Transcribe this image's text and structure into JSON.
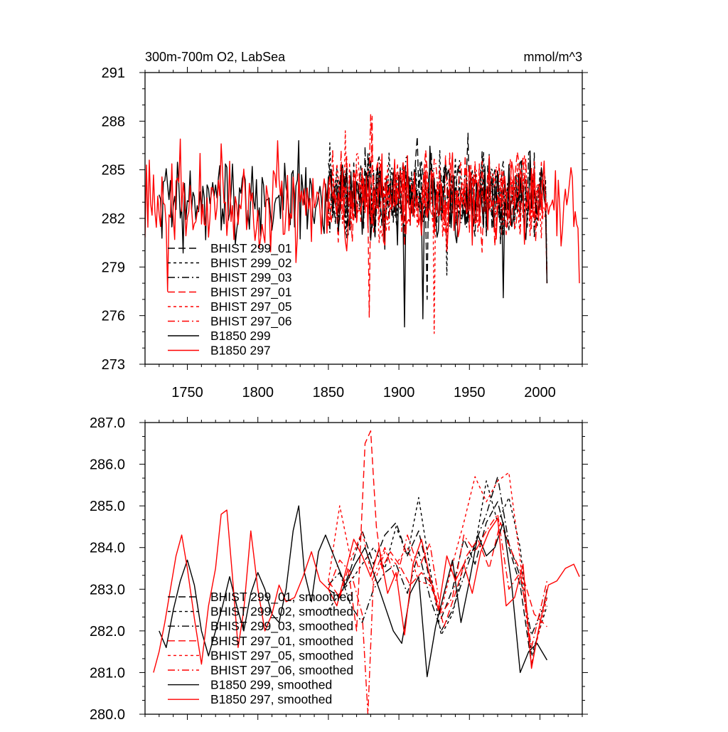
{
  "chart_data": [
    {
      "type": "line",
      "title": "300m-700m O2, LabSea",
      "units": "mmol/m^3",
      "xlim": [
        1720,
        2030
      ],
      "ylim": [
        273,
        291
      ],
      "xticks": [
        1750,
        1800,
        1850,
        1900,
        1950,
        2000
      ],
      "xtick_labels": [
        "1750",
        "1800",
        "1850",
        "1900",
        "1950",
        "2000"
      ],
      "yticks": [
        273,
        276,
        279,
        282,
        285,
        288,
        291
      ],
      "ytick_labels": [
        "273",
        "276",
        "279",
        "282",
        "285",
        "288",
        "291"
      ],
      "legend_position": "lower-left",
      "series": [
        {
          "name": "BHIST 299_01",
          "color": "#000000",
          "dash": "long-dash",
          "x_start": 1850,
          "x_end": 2005,
          "mean": 283.6,
          "amplitude": 1.9,
          "low": 278.0,
          "spikes": [
            [
              1920,
              277.0
            ]
          ]
        },
        {
          "name": "BHIST 299_02",
          "color": "#000000",
          "dash": "short-dash",
          "x_start": 1850,
          "x_end": 2005,
          "mean": 283.5,
          "amplitude": 1.9,
          "low": 278.0,
          "spikes": [
            [
              1934,
              278.5
            ]
          ]
        },
        {
          "name": "BHIST 299_03",
          "color": "#000000",
          "dash": "dash-dot",
          "x_start": 1850,
          "x_end": 2005,
          "mean": 283.5,
          "amplitude": 1.8,
          "low": 278.0,
          "spikes": []
        },
        {
          "name": "BHIST 297_01",
          "color": "#ff0000",
          "dash": "long-dash",
          "x_start": 1850,
          "x_end": 2005,
          "mean": 283.3,
          "amplitude": 2.0,
          "low": 278.0,
          "spikes": [
            [
              1879,
              275.9
            ],
            [
              1881,
              288.3
            ]
          ]
        },
        {
          "name": "BHIST 297_05",
          "color": "#ff0000",
          "dash": "short-dash",
          "x_start": 1850,
          "x_end": 2005,
          "mean": 283.4,
          "amplitude": 2.0,
          "low": 278.0,
          "spikes": [
            [
              1925,
              274.9
            ],
            [
              1862,
              287.4
            ]
          ]
        },
        {
          "name": "BHIST 297_06",
          "color": "#ff0000",
          "dash": "dash-dot",
          "x_start": 1850,
          "x_end": 2005,
          "mean": 283.4,
          "amplitude": 1.9,
          "low": 278.0,
          "spikes": [
            [
              1880,
              288.4
            ]
          ]
        },
        {
          "name": "B1850 299",
          "color": "#000000",
          "dash": "solid",
          "x_start": 1730,
          "x_end": 2005,
          "mean": 283.0,
          "amplitude": 2.0,
          "low": 278.0,
          "spikes": [
            [
              1904,
              275.3
            ],
            [
              1917,
              275.8
            ],
            [
              1829,
              286.8
            ],
            [
              1974,
              277.1
            ]
          ]
        },
        {
          "name": "B1850 297",
          "color": "#ff0000",
          "dash": "solid",
          "x_start": 1720,
          "x_end": 2028,
          "mean": 283.0,
          "amplitude": 2.0,
          "low": 278.0,
          "spikes": [
            [
              1736,
              277.5
            ],
            [
              1745,
              286.9
            ],
            [
              1774,
              286.6
            ]
          ]
        }
      ]
    },
    {
      "type": "line",
      "title": "",
      "xlim": [
        1720,
        2030
      ],
      "ylim": [
        280.0,
        287.0
      ],
      "xticks": [
        1750,
        1800,
        1850,
        1900,
        1950,
        2000
      ],
      "yticks": [
        280.0,
        281.0,
        282.0,
        283.0,
        284.0,
        285.0,
        286.0,
        287.0
      ],
      "ytick_labels": [
        "280.0",
        "281.0",
        "282.0",
        "283.0",
        "284.0",
        "285.0",
        "286.0",
        "287.0"
      ],
      "legend_position": "lower-left",
      "series": [
        {
          "name": "BHIST 299_01, smoothed",
          "color": "#000000",
          "dash": "long-dash",
          "x": [
            1850,
            1858,
            1866,
            1874,
            1882,
            1890,
            1898,
            1906,
            1914,
            1922,
            1930,
            1938,
            1946,
            1954,
            1962,
            1970,
            1978,
            1986,
            1994,
            2005
          ],
          "y": [
            283.0,
            282.8,
            283.5,
            284.4,
            283.6,
            284.3,
            284.6,
            283.8,
            284.4,
            283.2,
            282.3,
            283.0,
            284.2,
            283.6,
            284.6,
            285.1,
            284.0,
            283.1,
            281.2,
            283.0
          ]
        },
        {
          "name": "BHIST 299_02, smoothed",
          "color": "#000000",
          "dash": "short-dash",
          "x": [
            1850,
            1858,
            1866,
            1874,
            1882,
            1890,
            1898,
            1906,
            1914,
            1922,
            1930,
            1938,
            1946,
            1954,
            1962,
            1970,
            1978,
            1986,
            1994,
            2005
          ],
          "y": [
            282.5,
            282.9,
            283.2,
            283.6,
            284.0,
            283.5,
            284.5,
            283.8,
            285.2,
            283.5,
            281.9,
            282.4,
            283.6,
            284.0,
            285.6,
            284.6,
            285.2,
            284.0,
            281.4,
            282.6
          ]
        },
        {
          "name": "BHIST 299_03, smoothed",
          "color": "#000000",
          "dash": "dash-dot",
          "x": [
            1850,
            1858,
            1866,
            1874,
            1882,
            1890,
            1898,
            1906,
            1914,
            1922,
            1930,
            1938,
            1946,
            1954,
            1962,
            1970,
            1978,
            1986,
            1994,
            2005
          ],
          "y": [
            283.1,
            283.4,
            282.6,
            282.2,
            283.0,
            283.4,
            283.6,
            282.9,
            283.9,
            282.8,
            282.0,
            282.5,
            283.3,
            284.1,
            284.8,
            285.7,
            284.1,
            283.3,
            281.9,
            282.8
          ]
        },
        {
          "name": "BHIST 297_01, smoothed",
          "color": "#ff0000",
          "dash": "long-dash",
          "x": [
            1850,
            1858,
            1864,
            1870,
            1876,
            1880,
            1884,
            1888,
            1894,
            1900,
            1908,
            1916,
            1924,
            1932,
            1940,
            1948,
            1956,
            1964,
            1972,
            1980,
            1988,
            1996,
            2005
          ],
          "y": [
            283.2,
            282.8,
            283.5,
            282.0,
            286.5,
            286.8,
            284.5,
            283.5,
            283.9,
            283.6,
            283.1,
            283.4,
            283.1,
            282.1,
            282.9,
            283.8,
            284.2,
            283.5,
            284.6,
            283.9,
            283.3,
            282.4,
            282.1
          ]
        },
        {
          "name": "BHIST 297_05, smoothed",
          "color": "#ff0000",
          "dash": "short-dash",
          "x": [
            1850,
            1858,
            1866,
            1874,
            1882,
            1890,
            1898,
            1906,
            1914,
            1922,
            1930,
            1938,
            1946,
            1954,
            1962,
            1970,
            1978,
            1986,
            1994,
            2005
          ],
          "y": [
            283.2,
            285.0,
            283.7,
            284.4,
            283.1,
            283.9,
            283.6,
            284.0,
            283.2,
            283.1,
            282.5,
            283.6,
            284.6,
            285.7,
            285.1,
            285.6,
            285.8,
            283.7,
            281.2,
            282.8
          ]
        },
        {
          "name": "BHIST 297_06, smoothed",
          "color": "#ff0000",
          "dash": "dash-dot",
          "x": [
            1850,
            1858,
            1866,
            1874,
            1878,
            1882,
            1890,
            1898,
            1906,
            1914,
            1922,
            1930,
            1938,
            1946,
            1954,
            1962,
            1970,
            1978,
            1986,
            1994,
            2005
          ],
          "y": [
            283.0,
            283.7,
            283.4,
            282.4,
            280.0,
            283.3,
            284.0,
            283.2,
            284.3,
            283.5,
            284.1,
            282.4,
            282.8,
            284.3,
            283.9,
            284.4,
            284.8,
            283.0,
            283.4,
            281.6,
            283.2
          ]
        },
        {
          "name": "B1850 299, smoothed",
          "color": "#000000",
          "dash": "solid",
          "x": [
            1730,
            1735,
            1740,
            1745,
            1750,
            1755,
            1760,
            1765,
            1770,
            1775,
            1780,
            1785,
            1790,
            1795,
            1800,
            1805,
            1810,
            1815,
            1820,
            1825,
            1829,
            1833,
            1838,
            1843,
            1848,
            1855,
            1862,
            1869,
            1876,
            1883,
            1890,
            1896,
            1902,
            1908,
            1914,
            1920,
            1926,
            1932,
            1938,
            1944,
            1950,
            1956,
            1962,
            1968,
            1974,
            1980,
            1986,
            1992,
            1998,
            2005
          ],
          "y": [
            282.0,
            281.6,
            282.5,
            283.2,
            283.7,
            283.1,
            282.0,
            281.4,
            282.0,
            282.6,
            283.3,
            282.6,
            282.0,
            282.9,
            283.4,
            283.0,
            282.4,
            282.2,
            283.0,
            284.4,
            285.0,
            283.4,
            282.7,
            283.9,
            284.3,
            283.7,
            283.1,
            283.6,
            284.0,
            283.3,
            282.6,
            282.0,
            281.7,
            282.9,
            283.3,
            280.9,
            282.1,
            282.9,
            283.7,
            282.2,
            283.2,
            284.3,
            283.8,
            284.0,
            284.6,
            283.1,
            281.0,
            281.5,
            281.7,
            281.3
          ]
        },
        {
          "name": "B1850 297, smoothed",
          "color": "#ff0000",
          "dash": "solid",
          "x": [
            1726,
            1730,
            1734,
            1738,
            1742,
            1746,
            1750,
            1755,
            1760,
            1765,
            1770,
            1774,
            1778,
            1782,
            1786,
            1790,
            1795,
            1800,
            1805,
            1810,
            1815,
            1820,
            1826,
            1832,
            1838,
            1844,
            1850,
            1856,
            1862,
            1868,
            1874,
            1880,
            1886,
            1892,
            1898,
            1904,
            1910,
            1916,
            1922,
            1928,
            1934,
            1940,
            1946,
            1952,
            1958,
            1964,
            1970,
            1976,
            1982,
            1988,
            1994,
            2000,
            2006,
            2012,
            2018,
            2024,
            2028
          ],
          "y": [
            281.0,
            281.5,
            282.2,
            283.0,
            283.8,
            284.3,
            283.5,
            282.3,
            281.2,
            282.6,
            283.5,
            284.8,
            284.9,
            283.3,
            281.6,
            282.5,
            284.4,
            283.0,
            282.0,
            282.4,
            283.1,
            282.7,
            282.8,
            283.3,
            283.9,
            283.2,
            283.0,
            282.6,
            283.4,
            284.2,
            283.8,
            283.3,
            284.0,
            282.9,
            283.4,
            281.9,
            283.6,
            284.2,
            283.3,
            282.5,
            283.8,
            283.2,
            283.6,
            282.9,
            283.9,
            284.4,
            284.7,
            282.6,
            282.8,
            283.6,
            281.1,
            282.2,
            283.1,
            283.2,
            283.5,
            283.6,
            283.3
          ]
        }
      ]
    }
  ]
}
